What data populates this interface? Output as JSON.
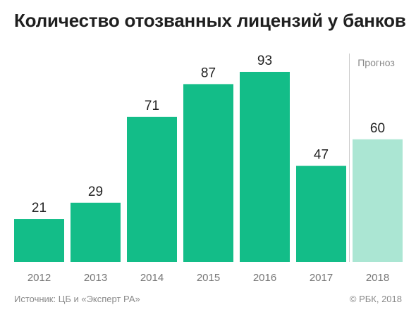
{
  "title": "Количество отозванных лицензий у банков",
  "forecast_label": "Прогноз",
  "source": "Источник: ЦБ и «Эксперт РА»",
  "copyright": "© РБК, 2018",
  "chart_data": {
    "type": "bar",
    "title": "Количество отозванных лицензий у банков",
    "categories": [
      "2012",
      "2013",
      "2014",
      "2015",
      "2016",
      "2017",
      "2018"
    ],
    "values": [
      21,
      29,
      71,
      87,
      93,
      47,
      60
    ],
    "forecast": [
      false,
      false,
      false,
      false,
      false,
      false,
      true
    ],
    "ylim": [
      0,
      93
    ],
    "grid": false,
    "colors": {
      "actual": "#13bd88",
      "forecast": "#abe6d3",
      "label": "#222222",
      "tick": "#777777",
      "divider": "#cccccc"
    }
  }
}
